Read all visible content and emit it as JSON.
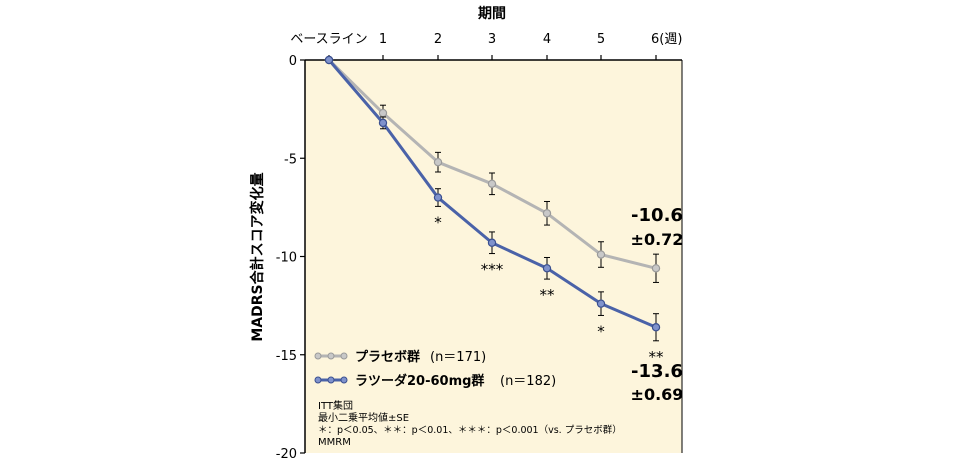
{
  "chart_data": {
    "type": "line",
    "title": "期間",
    "xlabel": "期間",
    "ylabel": "MADRS合計スコア変化量",
    "categories": [
      "ベースライン",
      "1",
      "2",
      "3",
      "4",
      "5",
      "6"
    ],
    "x_last_unit": "(週)",
    "ylim": [
      -20,
      0
    ],
    "yticks": [
      0,
      -5,
      -10,
      -15,
      -20
    ],
    "series": [
      {
        "name": "プラセボ群",
        "n_label": "(n＝171)",
        "color": "#b4b4b4",
        "values": [
          0,
          -2.7,
          -5.2,
          -6.3,
          -7.8,
          -9.9,
          -10.6
        ],
        "errors": [
          0,
          0.4,
          0.5,
          0.55,
          0.6,
          0.65,
          0.72
        ]
      },
      {
        "name": "ラツーダ20-60mg群",
        "n_label": "(n＝182)",
        "color": "#4a62a8",
        "values": [
          0,
          -3.2,
          -7.0,
          -9.3,
          -10.6,
          -12.4,
          -13.6
        ],
        "errors": [
          0,
          0.3,
          0.45,
          0.55,
          0.55,
          0.6,
          0.69
        ]
      }
    ],
    "significance": [
      {
        "index": 2,
        "label": "*"
      },
      {
        "index": 3,
        "label": "***"
      },
      {
        "index": 4,
        "label": "**"
      },
      {
        "index": 5,
        "label": "*"
      },
      {
        "index": 6,
        "label": "**"
      }
    ],
    "annotations": {
      "placebo_value": "-10.6",
      "placebo_se": "±0.72",
      "lurasidone_value": "-13.6",
      "lurasidone_se": "±0.69"
    },
    "notes": [
      "ITT集団",
      "最小二乗平均値±SE",
      "＊：p＜0.05、＊＊：p＜0.01、＊＊＊：p＜0.001（vs. プラセボ群）",
      "MMRM"
    ],
    "colors": {
      "plot_background": "#fdf5dc",
      "placebo": "#b4b4b4",
      "lurasidone": "#4a62a8"
    }
  }
}
